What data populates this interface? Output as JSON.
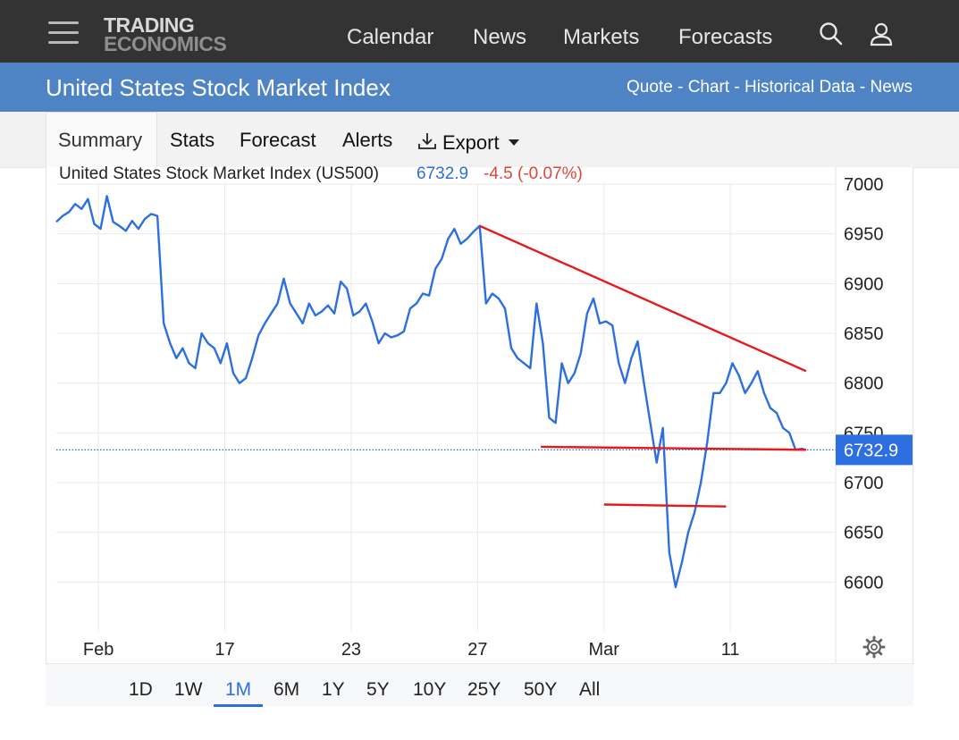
{
  "header": {
    "logo_line1": "TRADING",
    "logo_line2": "ECONOMICS",
    "nav": [
      "Calendar",
      "News",
      "Markets",
      "Forecasts"
    ],
    "icons": [
      "menu-icon",
      "search-icon",
      "user-icon"
    ]
  },
  "title_bar": {
    "title": "United States Stock Market Index",
    "links": [
      "Quote",
      "Chart",
      "Historical Data",
      "News"
    ],
    "separator": " - "
  },
  "tabs": {
    "summary": "Summary",
    "stats": "Stats",
    "forecast": "Forecast",
    "alerts": "Alerts",
    "export": "Export"
  },
  "quote": {
    "name": "United States Stock Market Index (US500)",
    "price": "6732.9",
    "change": "-4.5 (-0.07%)",
    "price_color": "#2d6fe0",
    "change_color": "#e0453a"
  },
  "ranges": [
    "1D",
    "1W",
    "1M",
    "6M",
    "1Y",
    "5Y",
    "10Y",
    "25Y",
    "50Y",
    "All"
  ],
  "active_range": "1M",
  "chart_data": {
    "type": "line",
    "series_color": "#2d6fe0",
    "trendline_color": "#e51b1b",
    "ylim": [
      6550,
      7000
    ],
    "y_ticks": [
      6600,
      6650,
      6700,
      6750,
      6800,
      6850,
      6900,
      6950,
      7000
    ],
    "y_tick_labels": [
      "6600",
      "6650",
      "6700",
      "6750",
      "6800",
      "6850",
      "6900",
      "6950",
      "7000"
    ],
    "xlim": [
      0,
      37
    ],
    "x_ticks": [
      {
        "label": "Feb",
        "x": 2
      },
      {
        "label": "17",
        "x": 8
      },
      {
        "label": "23",
        "x": 14
      },
      {
        "label": "27",
        "x": 20
      },
      {
        "label": "Mar",
        "x": 26
      },
      {
        "label": "11",
        "x": 32
      }
    ],
    "last_value": 6732.9,
    "last_value_label": "6732.9",
    "series": [
      [
        0,
        6962
      ],
      [
        0.3,
        6968
      ],
      [
        0.6,
        6972
      ],
      [
        0.9,
        6980
      ],
      [
        1.2,
        6975
      ],
      [
        1.5,
        6985
      ],
      [
        1.8,
        6960
      ],
      [
        2.1,
        6955
      ],
      [
        2.4,
        6988
      ],
      [
        2.7,
        6962
      ],
      [
        3.0,
        6958
      ],
      [
        3.3,
        6953
      ],
      [
        3.6,
        6963
      ],
      [
        3.9,
        6955
      ],
      [
        4.2,
        6965
      ],
      [
        4.5,
        6970
      ],
      [
        4.8,
        6968
      ],
      [
        5.1,
        6860
      ],
      [
        5.4,
        6840
      ],
      [
        5.7,
        6825
      ],
      [
        6.0,
        6835
      ],
      [
        6.3,
        6820
      ],
      [
        6.6,
        6815
      ],
      [
        6.9,
        6850
      ],
      [
        7.2,
        6840
      ],
      [
        7.5,
        6835
      ],
      [
        7.8,
        6820
      ],
      [
        8.1,
        6840
      ],
      [
        8.4,
        6810
      ],
      [
        8.7,
        6800
      ],
      [
        9.0,
        6805
      ],
      [
        9.3,
        6825
      ],
      [
        9.6,
        6848
      ],
      [
        9.9,
        6860
      ],
      [
        10.2,
        6870
      ],
      [
        10.5,
        6880
      ],
      [
        10.8,
        6905
      ],
      [
        11.1,
        6880
      ],
      [
        11.4,
        6870
      ],
      [
        11.7,
        6860
      ],
      [
        12.0,
        6880
      ],
      [
        12.3,
        6868
      ],
      [
        12.6,
        6872
      ],
      [
        12.9,
        6878
      ],
      [
        13.2,
        6870
      ],
      [
        13.5,
        6902
      ],
      [
        13.8,
        6895
      ],
      [
        14.1,
        6868
      ],
      [
        14.4,
        6872
      ],
      [
        14.7,
        6880
      ],
      [
        15.0,
        6862
      ],
      [
        15.3,
        6840
      ],
      [
        15.6,
        6850
      ],
      [
        15.9,
        6846
      ],
      [
        16.2,
        6848
      ],
      [
        16.5,
        6852
      ],
      [
        16.8,
        6875
      ],
      [
        17.1,
        6880
      ],
      [
        17.4,
        6890
      ],
      [
        17.7,
        6888
      ],
      [
        18.0,
        6915
      ],
      [
        18.3,
        6925
      ],
      [
        18.6,
        6945
      ],
      [
        18.9,
        6955
      ],
      [
        19.2,
        6940
      ],
      [
        19.5,
        6945
      ],
      [
        19.8,
        6952
      ],
      [
        20.1,
        6958
      ],
      [
        20.4,
        6880
      ],
      [
        20.7,
        6890
      ],
      [
        21.0,
        6885
      ],
      [
        21.3,
        6875
      ],
      [
        21.6,
        6835
      ],
      [
        21.9,
        6825
      ],
      [
        22.2,
        6820
      ],
      [
        22.5,
        6815
      ],
      [
        22.8,
        6880
      ],
      [
        23.1,
        6840
      ],
      [
        23.4,
        6765
      ],
      [
        23.7,
        6760
      ],
      [
        24.0,
        6820
      ],
      [
        24.3,
        6800
      ],
      [
        24.6,
        6810
      ],
      [
        24.9,
        6830
      ],
      [
        25.2,
        6870
      ],
      [
        25.5,
        6885
      ],
      [
        25.8,
        6860
      ],
      [
        26.1,
        6862
      ],
      [
        26.4,
        6858
      ],
      [
        26.7,
        6820
      ],
      [
        27.0,
        6800
      ],
      [
        27.3,
        6825
      ],
      [
        27.6,
        6842
      ],
      [
        27.9,
        6800
      ],
      [
        28.2,
        6760
      ],
      [
        28.5,
        6720
      ],
      [
        28.8,
        6755
      ],
      [
        29.1,
        6630
      ],
      [
        29.4,
        6595
      ],
      [
        29.7,
        6620
      ],
      [
        30.0,
        6650
      ],
      [
        30.3,
        6670
      ],
      [
        30.6,
        6700
      ],
      [
        30.9,
        6740
      ],
      [
        31.2,
        6790
      ],
      [
        31.5,
        6790
      ],
      [
        31.8,
        6800
      ],
      [
        32.1,
        6820
      ],
      [
        32.4,
        6808
      ],
      [
        32.7,
        6790
      ],
      [
        33.0,
        6800
      ],
      [
        33.3,
        6812
      ],
      [
        33.6,
        6790
      ],
      [
        33.9,
        6775
      ],
      [
        34.2,
        6770
      ],
      [
        34.5,
        6755
      ],
      [
        34.8,
        6750
      ],
      [
        35.1,
        6733
      ],
      [
        35.4,
        6734
      ],
      [
        35.6,
        6732.9
      ]
    ],
    "trendlines": [
      {
        "from": [
          20.1,
          6958
        ],
        "to": [
          35.6,
          6812
        ]
      },
      {
        "from": [
          23.0,
          6736
        ],
        "to": [
          35.6,
          6733
        ]
      },
      {
        "from": [
          26.0,
          6678
        ],
        "to": [
          31.8,
          6676
        ]
      }
    ]
  }
}
